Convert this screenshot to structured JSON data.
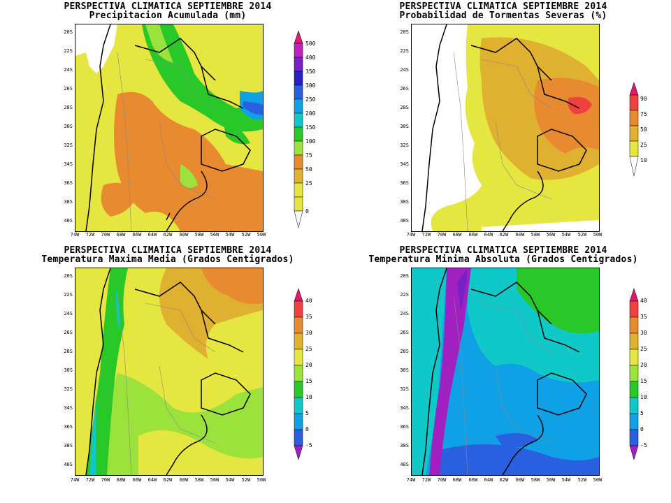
{
  "panels": [
    {
      "id": "precip",
      "title_line1": "PERSPECTIVA CLIMATICA SEPTIEMBRE 2014",
      "title_line2": "Precipitacion Acumulada (mm)",
      "colorbar": {
        "labels": [
          "0",
          "25",
          "50",
          "75",
          "100",
          "150",
          "200",
          "250",
          "300",
          "350",
          "400",
          "500"
        ],
        "colors": [
          "#f8f8f8",
          "#e6e640",
          "#e0b030",
          "#e88a30",
          "#9ce23c",
          "#28c828",
          "#10c8c8",
          "#10a0e6",
          "#2860e0",
          "#2820c8",
          "#7820c8",
          "#c020c0",
          "#e01870"
        ]
      }
    },
    {
      "id": "storms",
      "title_line1": "PERSPECTIVA CLIMATICA SEPTIEMBRE 2014",
      "title_line2": "Probabilidad de Tormentas Severas (%)",
      "colorbar": {
        "labels": [
          "10",
          "25",
          "50",
          "75",
          "90"
        ],
        "colors": [
          "#ffffff",
          "#e6e640",
          "#e0b030",
          "#e88a30",
          "#f04040",
          "#e01870"
        ]
      }
    },
    {
      "id": "tmax",
      "title_line1": "PERSPECTIVA CLIMATICA SEPTIEMBRE 2014",
      "title_line2": "Temperatura Maxima Media (Grados Centigrados)",
      "colorbar": {
        "labels": [
          "-5",
          "0",
          "5",
          "10",
          "15",
          "20",
          "25",
          "30",
          "35",
          "40"
        ],
        "colors": [
          "#a020c0",
          "#2860e0",
          "#10a0e6",
          "#10c8c8",
          "#28c828",
          "#9ce23c",
          "#e6e640",
          "#e0b030",
          "#e88a30",
          "#f04040",
          "#e01870"
        ]
      }
    },
    {
      "id": "tmin",
      "title_line1": "PERSPECTIVA CLIMATICA SEPTIEMBRE 2014",
      "title_line2": "Temperatura Minima Absoluta (Grados Centigrados)",
      "colorbar": {
        "labels": [
          "-5",
          "0",
          "5",
          "10",
          "15",
          "20",
          "25",
          "30",
          "35",
          "40"
        ],
        "colors": [
          "#a020c0",
          "#2860e0",
          "#10a0e6",
          "#10c8c8",
          "#28c828",
          "#9ce23c",
          "#e6e640",
          "#e0b030",
          "#e88a30",
          "#f04040",
          "#e01870"
        ]
      }
    }
  ],
  "lat_labels": [
    "20S",
    "22S",
    "24S",
    "26S",
    "28S",
    "30S",
    "32S",
    "34S",
    "36S",
    "38S",
    "40S"
  ],
  "lon_labels": [
    "74W",
    "72W",
    "70W",
    "68W",
    "66W",
    "64W",
    "62W",
    "60W",
    "58W",
    "56W",
    "54W",
    "52W",
    "50W"
  ],
  "field_colors": {
    "white": "#ffffff",
    "yellow": "#e6e640",
    "light_orange": "#e0b030",
    "orange": "#e88a30",
    "red": "#f04040",
    "light_green": "#9ce23c",
    "green": "#28c828",
    "cyan": "#10c8c8",
    "light_blue": "#10a0e6",
    "blue": "#2860e0",
    "purple": "#a020c0"
  }
}
